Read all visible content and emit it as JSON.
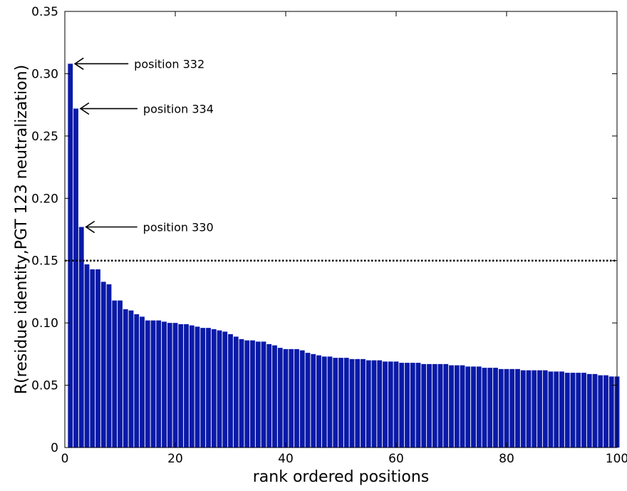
{
  "chart_data": {
    "type": "bar",
    "xlabel": "rank ordered positions",
    "ylabel": "R(residue identity,PGT 123 neutralization)",
    "xlim": [
      0,
      100
    ],
    "ylim": [
      0,
      0.35
    ],
    "xticks": [
      0,
      20,
      40,
      60,
      80,
      100
    ],
    "yticks": [
      0,
      0.05,
      0.1,
      0.15,
      0.2,
      0.25,
      0.3,
      0.35
    ],
    "ytick_labels": [
      "0",
      "0.05",
      "0.10",
      "0.15",
      "0.20",
      "0.25",
      "0.30",
      "0.35"
    ],
    "xtick_labels": [
      "0",
      "20",
      "40",
      "60",
      "80",
      "100"
    ],
    "bar_color": "#0A1AA8",
    "threshold": {
      "value": 0.15,
      "style": "dotted",
      "color": "#000000"
    },
    "x": [
      1,
      2,
      3,
      4,
      5,
      6,
      7,
      8,
      9,
      10,
      11,
      12,
      13,
      14,
      15,
      16,
      17,
      18,
      19,
      20,
      21,
      22,
      23,
      24,
      25,
      26,
      27,
      28,
      29,
      30,
      31,
      32,
      33,
      34,
      35,
      36,
      37,
      38,
      39,
      40,
      41,
      42,
      43,
      44,
      45,
      46,
      47,
      48,
      49,
      50,
      51,
      52,
      53,
      54,
      55,
      56,
      57,
      58,
      59,
      60,
      61,
      62,
      63,
      64,
      65,
      66,
      67,
      68,
      69,
      70,
      71,
      72,
      73,
      74,
      75,
      76,
      77,
      78,
      79,
      80,
      81,
      82,
      83,
      84,
      85,
      86,
      87,
      88,
      89,
      90,
      91,
      92,
      93,
      94,
      95,
      96,
      97,
      98,
      99,
      100
    ],
    "values": [
      0.308,
      0.272,
      0.177,
      0.147,
      0.143,
      0.143,
      0.133,
      0.131,
      0.118,
      0.118,
      0.111,
      0.11,
      0.107,
      0.105,
      0.102,
      0.102,
      0.102,
      0.101,
      0.1,
      0.1,
      0.099,
      0.099,
      0.098,
      0.097,
      0.096,
      0.096,
      0.095,
      0.094,
      0.093,
      0.091,
      0.089,
      0.087,
      0.086,
      0.086,
      0.085,
      0.085,
      0.083,
      0.082,
      0.08,
      0.079,
      0.079,
      0.079,
      0.078,
      0.076,
      0.075,
      0.074,
      0.073,
      0.073,
      0.072,
      0.072,
      0.072,
      0.071,
      0.071,
      0.071,
      0.07,
      0.07,
      0.07,
      0.069,
      0.069,
      0.069,
      0.068,
      0.068,
      0.068,
      0.068,
      0.067,
      0.067,
      0.067,
      0.067,
      0.067,
      0.066,
      0.066,
      0.066,
      0.065,
      0.065,
      0.065,
      0.064,
      0.064,
      0.064,
      0.063,
      0.063,
      0.063,
      0.063,
      0.062,
      0.062,
      0.062,
      0.062,
      0.062,
      0.061,
      0.061,
      0.061,
      0.06,
      0.06,
      0.06,
      0.06,
      0.059,
      0.059,
      0.058,
      0.058,
      0.057,
      0.057
    ],
    "annotations": [
      {
        "text": "position 332",
        "x": 1,
        "y": 0.308
      },
      {
        "text": "position 334",
        "x": 2,
        "y": 0.272
      },
      {
        "text": "position 330",
        "x": 3,
        "y": 0.177
      }
    ]
  }
}
